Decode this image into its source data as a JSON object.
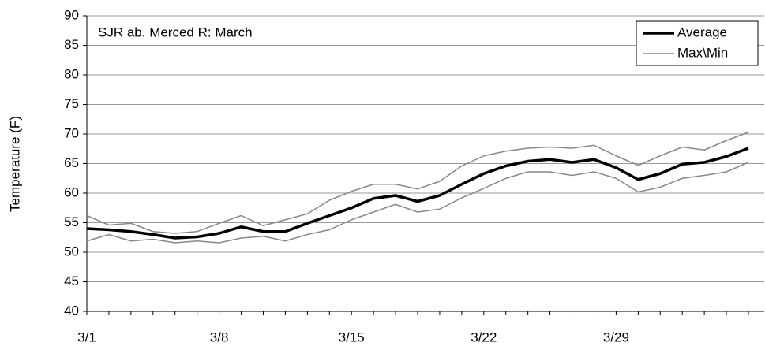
{
  "chart_data": {
    "type": "line",
    "annotation": "SJR ab. Merced R: March",
    "y_label": "Temperature (F)",
    "categories": [
      "3/1",
      null,
      null,
      null,
      null,
      null,
      "3/8",
      null,
      null,
      null,
      null,
      null,
      "3/15",
      null,
      null,
      null,
      null,
      null,
      "3/22",
      null,
      null,
      null,
      null,
      null,
      "3/29",
      null,
      null,
      null,
      null,
      null,
      null
    ],
    "series": [
      {
        "name": "Average",
        "color": "#000000",
        "width": 3.5,
        "values": [
          54,
          53.8,
          53.5,
          53,
          52.4,
          52.6,
          53.2,
          54.3,
          53.5,
          53.5,
          54.9,
          56.2,
          57.5,
          59.1,
          59.6,
          58.6,
          59.6,
          61.5,
          63.3,
          64.6,
          65.4,
          65.7,
          65.2,
          65.7,
          64.3,
          62.3,
          63.3,
          64.9,
          65.2,
          66.2,
          67.6
        ]
      },
      {
        "name": "Max\\Min",
        "color": "#888888",
        "width": 1.5,
        "values": [
          56.2,
          54.6,
          54.9,
          53.5,
          53.2,
          53.5,
          54.9,
          56.2,
          54.5,
          55.5,
          56.5,
          58.8,
          60.3,
          61.5,
          61.5,
          60.7,
          62,
          64.6,
          66.3,
          67.1,
          67.6,
          67.8,
          67.6,
          68.1,
          66.3,
          64.7,
          66.3,
          67.8,
          67.3,
          68.9,
          70.3
        ]
      },
      {
        "color": "#888888",
        "width": 1.5,
        "values": [
          51.9,
          53,
          51.9,
          52.2,
          51.6,
          51.9,
          51.6,
          52.4,
          52.7,
          51.9,
          53,
          53.8,
          55.5,
          56.8,
          58.1,
          56.8,
          57.3,
          59.2,
          60.8,
          62.5,
          63.6,
          63.6,
          63,
          63.6,
          62.5,
          60.2,
          61,
          62.5,
          63,
          63.6,
          65.2
        ]
      }
    ],
    "ylim": [
      40,
      90
    ],
    "yticks": [
      40,
      45,
      50,
      55,
      60,
      65,
      70,
      75,
      80,
      85,
      90
    ],
    "grid": true,
    "legend": "top-right"
  }
}
